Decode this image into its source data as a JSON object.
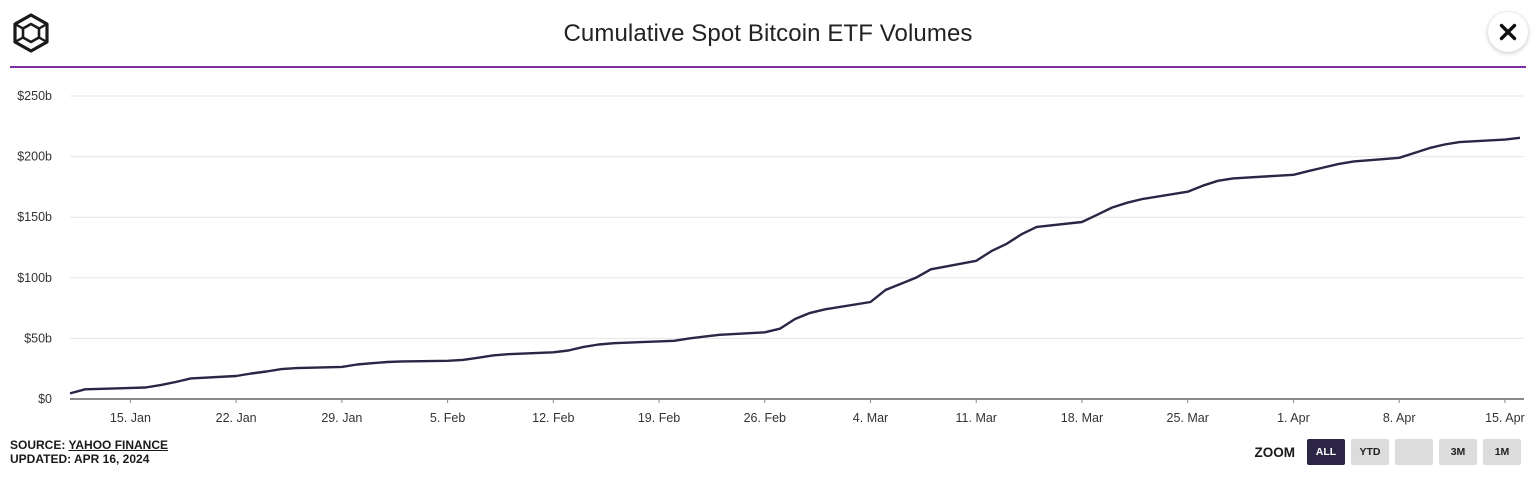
{
  "header": {
    "title": "Cumulative Spot Bitcoin ETF Volumes"
  },
  "footer": {
    "source_prefix": "SOURCE: ",
    "source_link": "YAHOO FINANCE",
    "updated": "UPDATED: APR 16, 2024"
  },
  "zoom": {
    "label": "ZOOM",
    "buttons": [
      "ALL",
      "YTD",
      "",
      "3M",
      "1M"
    ],
    "active": "ALL"
  },
  "colors": {
    "line": "#2c2545",
    "accent": "#7b2fa0",
    "grid": "#e6e6e6"
  },
  "chart_data": {
    "type": "line",
    "title": "Cumulative Spot Bitcoin ETF Volumes",
    "xlabel": "",
    "ylabel": "",
    "grid": true,
    "ylim": [
      0,
      250
    ],
    "y_unit": "billion USD",
    "yticks": [
      "$0",
      "$50b",
      "$100b",
      "$150b",
      "$200b",
      "$250b"
    ],
    "xticks": [
      "15. Jan",
      "22. Jan",
      "29. Jan",
      "5. Feb",
      "12. Feb",
      "19. Feb",
      "26. Feb",
      "4. Mar",
      "11. Mar",
      "18. Mar",
      "25. Mar",
      "1. Apr",
      "8. Apr",
      "15. Apr"
    ],
    "series": [
      {
        "x": [
          "2024-01-11",
          "2024-01-12",
          "2024-01-16",
          "2024-01-17",
          "2024-01-18",
          "2024-01-19",
          "2024-01-22",
          "2024-01-23",
          "2024-01-24",
          "2024-01-25",
          "2024-01-26",
          "2024-01-29",
          "2024-01-30",
          "2024-01-31",
          "2024-02-01",
          "2024-02-02",
          "2024-02-05",
          "2024-02-06",
          "2024-02-07",
          "2024-02-08",
          "2024-02-09",
          "2024-02-12",
          "2024-02-13",
          "2024-02-14",
          "2024-02-15",
          "2024-02-16",
          "2024-02-20",
          "2024-02-21",
          "2024-02-22",
          "2024-02-23",
          "2024-02-26",
          "2024-02-27",
          "2024-02-28",
          "2024-02-29",
          "2024-03-01",
          "2024-03-04",
          "2024-03-05",
          "2024-03-06",
          "2024-03-07",
          "2024-03-08",
          "2024-03-11",
          "2024-03-12",
          "2024-03-13",
          "2024-03-14",
          "2024-03-15",
          "2024-03-18",
          "2024-03-19",
          "2024-03-20",
          "2024-03-21",
          "2024-03-22",
          "2024-03-25",
          "2024-03-26",
          "2024-03-27",
          "2024-03-28",
          "2024-04-01",
          "2024-04-02",
          "2024-04-03",
          "2024-04-04",
          "2024-04-05",
          "2024-04-08",
          "2024-04-09",
          "2024-04-10",
          "2024-04-11",
          "2024-04-12",
          "2024-04-15",
          "2024-04-16"
        ],
        "values": [
          4.6,
          8.0,
          9.5,
          11.5,
          14.0,
          17.0,
          19.0,
          21.0,
          22.7,
          24.7,
          25.5,
          26.5,
          28.5,
          29.5,
          30.5,
          31.0,
          31.5,
          32.3,
          34.0,
          36.0,
          37.0,
          38.5,
          40.0,
          43.0,
          45.0,
          46.0,
          48.0,
          50.0,
          51.5,
          53.0,
          55.0,
          58.0,
          66.0,
          71.0,
          74.0,
          80.0,
          90.0,
          95.0,
          100.0,
          107.0,
          114.0,
          122.0,
          128.0,
          136.0,
          142.0,
          146.0,
          152.0,
          158.0,
          162.0,
          165.0,
          171.0,
          176.0,
          180.0,
          182.0,
          185.0,
          188.0,
          191.0,
          194.0,
          196.0,
          199.0,
          203.0,
          207.0,
          210.0,
          212.0,
          214.0,
          215.5
        ]
      }
    ]
  }
}
